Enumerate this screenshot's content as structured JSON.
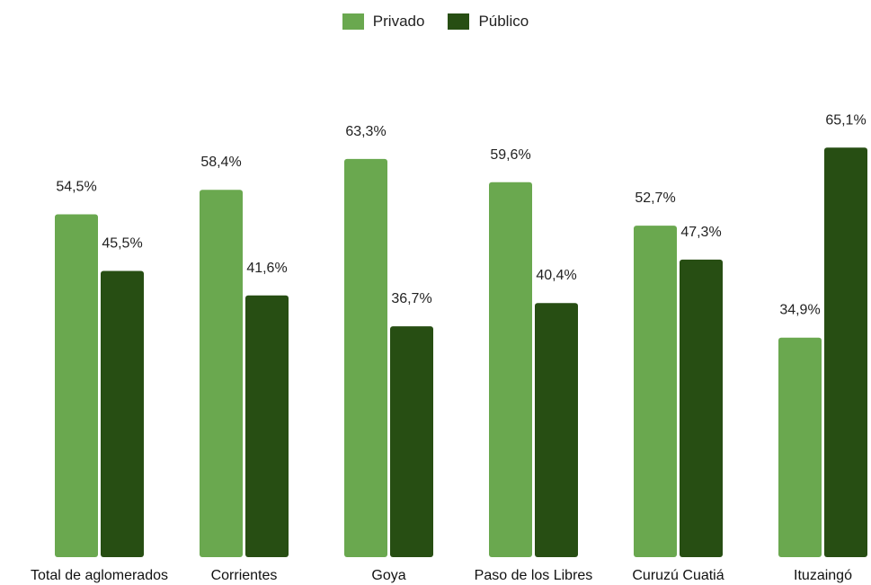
{
  "chart_data": {
    "type": "bar",
    "categories": [
      "Total de aglomerados",
      "Corrientes",
      "Goya",
      "Paso de los Libres",
      "Curuzú Cuatiá",
      "Ituzaingó"
    ],
    "series": [
      {
        "name": "Privado",
        "values": [
          54.5,
          58.4,
          63.3,
          59.6,
          52.7,
          34.9
        ],
        "labels": [
          "54,5%",
          "58,4%",
          "63,3%",
          "59,6%",
          "52,7%",
          "34,9%"
        ],
        "color": "#6aa84f"
      },
      {
        "name": "Público",
        "values": [
          45.5,
          41.6,
          36.7,
          40.4,
          47.3,
          65.1
        ],
        "labels": [
          "45,5%",
          "41,6%",
          "36,7%",
          "40,4%",
          "47,3%",
          "65,1%"
        ],
        "color": "#274e13"
      }
    ],
    "legend_position": "top-center",
    "ylim": [
      0,
      70
    ],
    "grid": false
  }
}
